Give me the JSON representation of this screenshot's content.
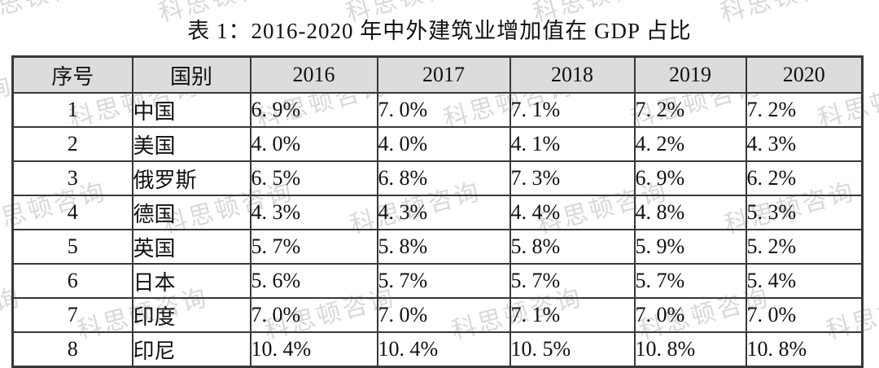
{
  "title": "表 1：2016-2020 年中外建筑业增加值在 GDP 占比",
  "watermark": {
    "text": "科思顿咨询",
    "color": "#d2d2d2"
  },
  "colors": {
    "header_background": "#dcdcdc",
    "table_border": "#383838",
    "text": "#111111"
  },
  "table": {
    "headers": [
      "序号",
      "国别",
      "2016",
      "2017",
      "2018",
      "2019",
      "2020"
    ],
    "rows": [
      [
        "1",
        "中国",
        "6. 9%",
        "7. 0%",
        "7. 1%",
        "7. 2%",
        "7. 2%"
      ],
      [
        "2",
        "美国",
        "4. 0%",
        "4. 0%",
        "4. 1%",
        "4. 2%",
        "4. 3%"
      ],
      [
        "3",
        "俄罗斯",
        "6. 5%",
        "6. 8%",
        "7. 3%",
        "6. 9%",
        "6. 2%"
      ],
      [
        "4",
        "德国",
        "4. 3%",
        "4. 3%",
        "4. 4%",
        "4. 8%",
        "5. 3%"
      ],
      [
        "5",
        "英国",
        "5. 7%",
        "5. 8%",
        "5. 8%",
        "5. 9%",
        "5. 2%"
      ],
      [
        "6",
        "日本",
        "5. 6%",
        "5. 7%",
        "5. 7%",
        "5. 7%",
        "5. 4%"
      ],
      [
        "7",
        "印度",
        "7. 0%",
        "7. 0%",
        "7. 1%",
        "7. 0%",
        "7. 0%"
      ],
      [
        "8",
        "印尼",
        "10. 4%",
        "10. 4%",
        "10. 5%",
        "10. 8%",
        "10. 8%"
      ]
    ]
  }
}
